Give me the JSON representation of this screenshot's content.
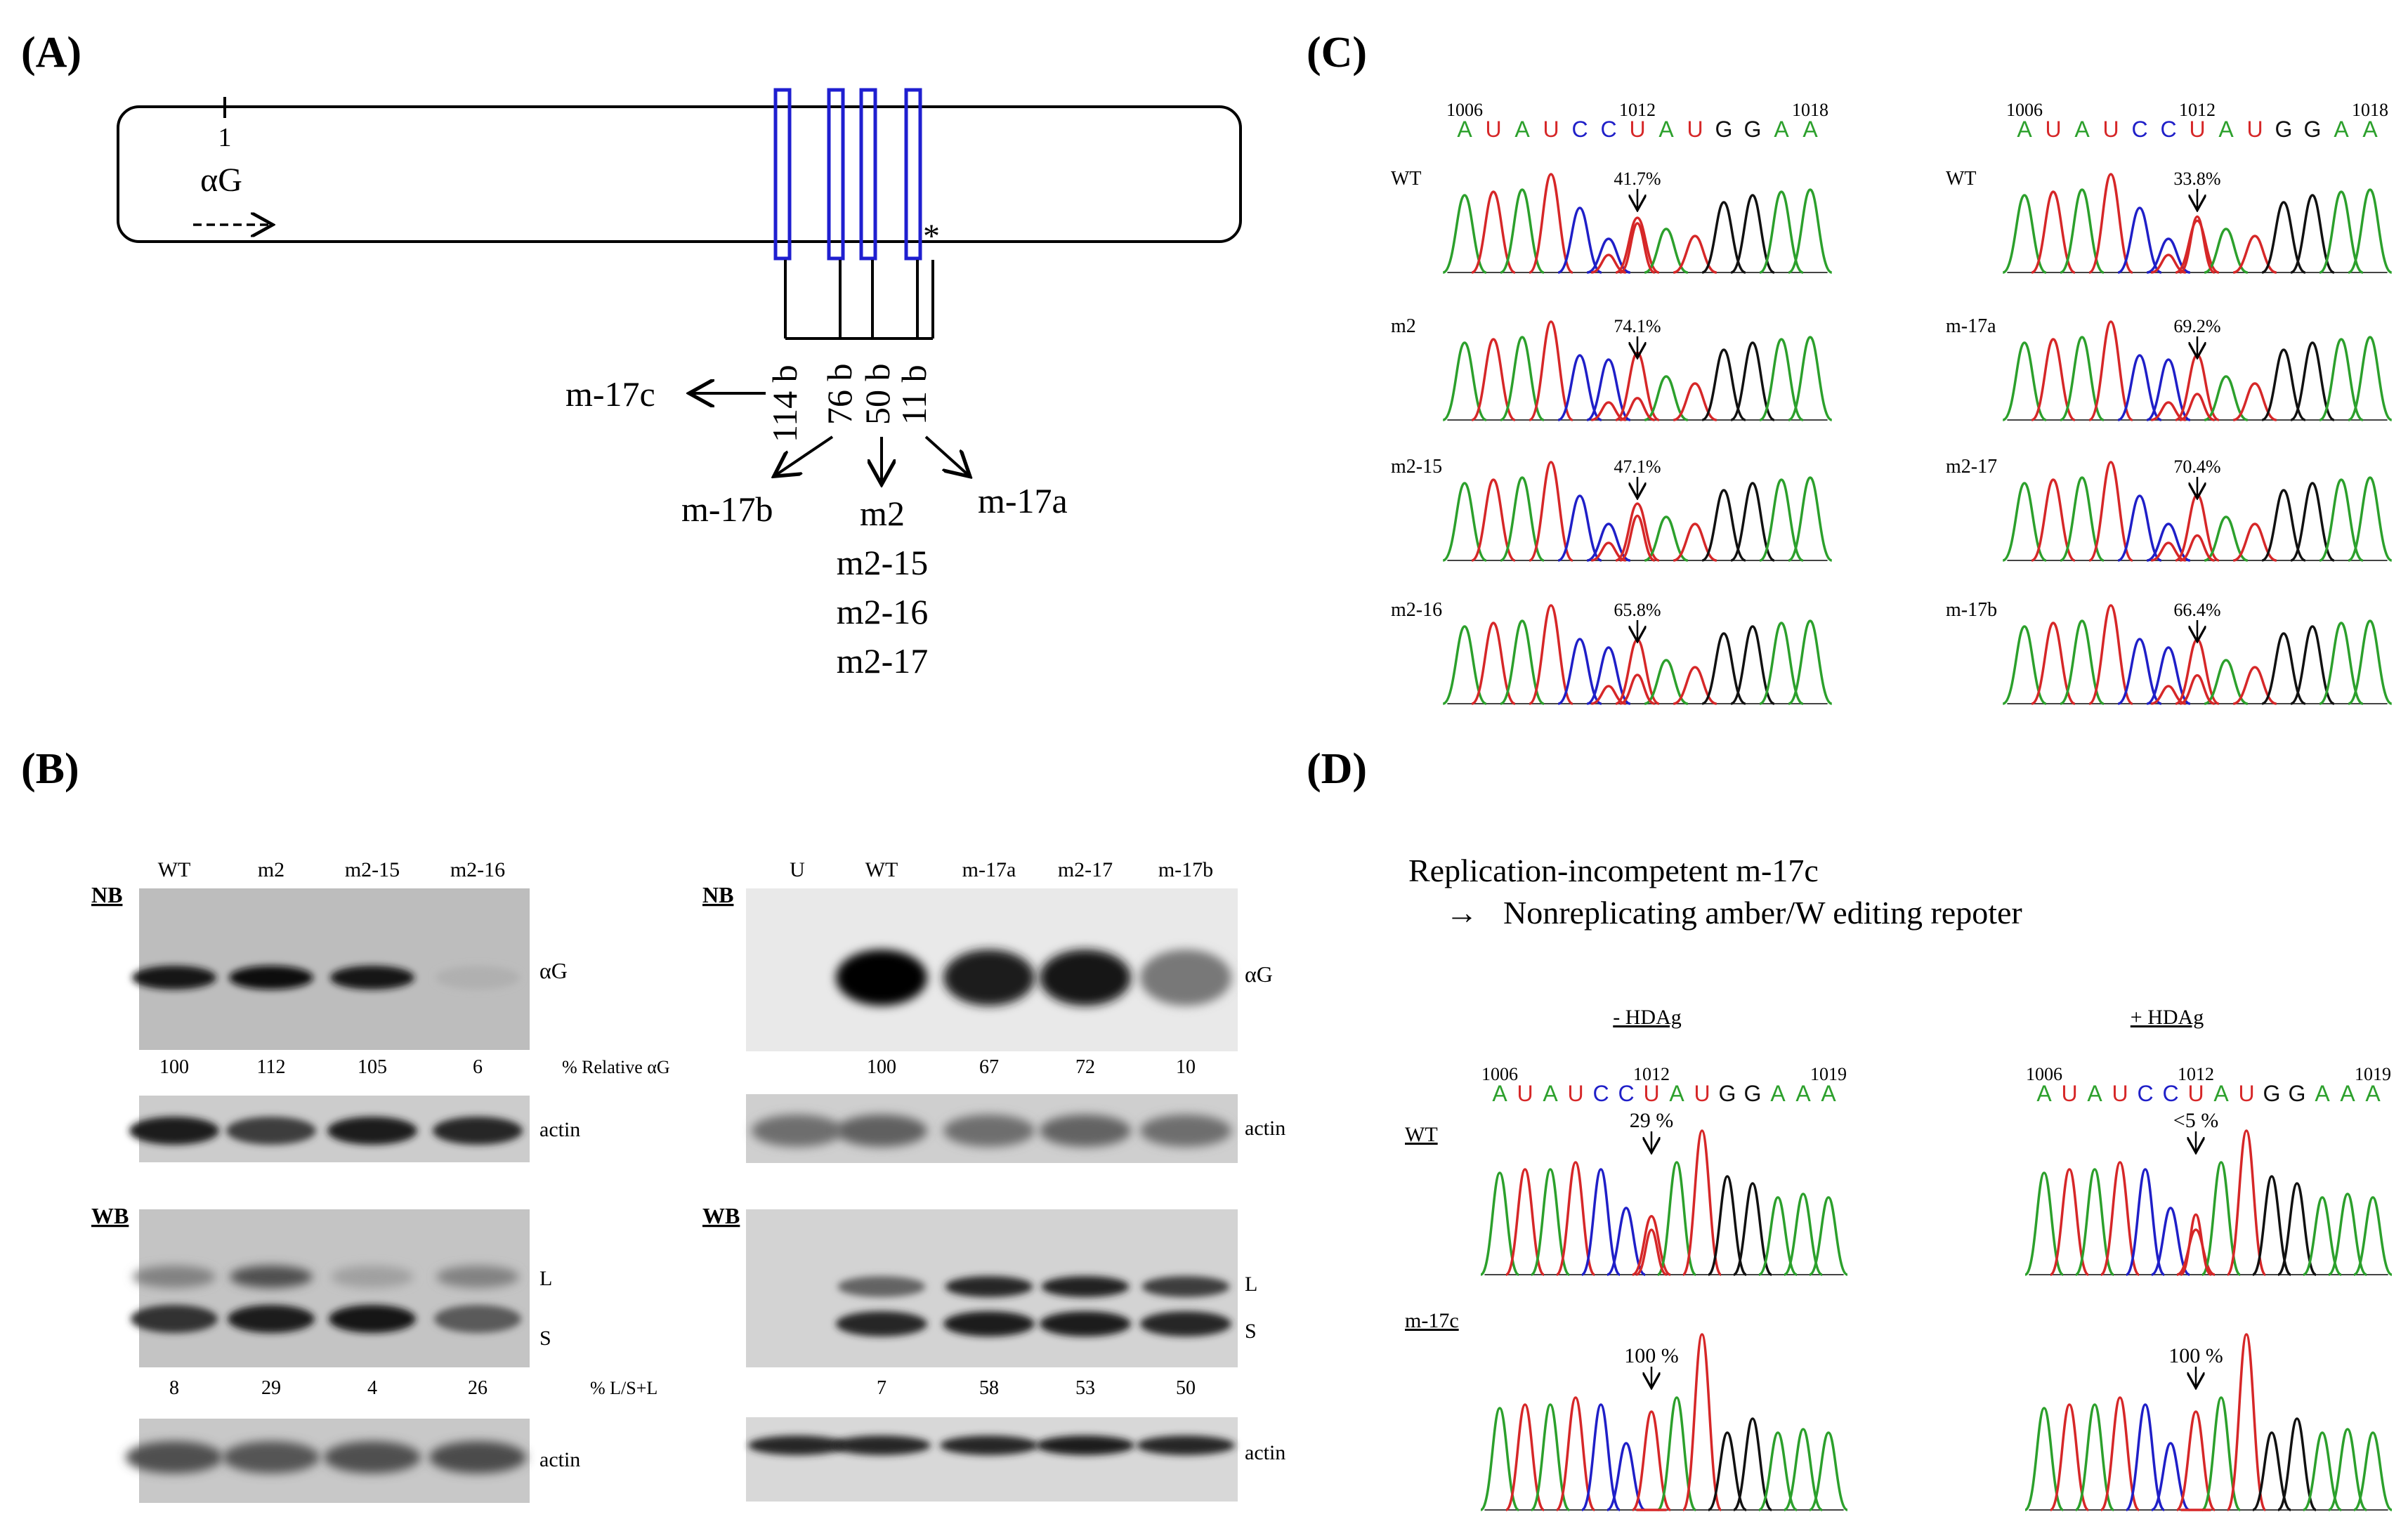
{
  "panels": {
    "A": "(A)",
    "B": "(B)",
    "C": "(C)",
    "D": "(D)"
  },
  "panelA": {
    "pos_label": "1",
    "ag_label": "αG",
    "star": "*",
    "sizes": [
      "114 b",
      "76 b",
      "50 b",
      "11 b"
    ],
    "mutants": {
      "c": "m-17c",
      "b": "m-17b",
      "a": "m-17a",
      "center": [
        "m2",
        "m2-15",
        "m2-16",
        "m2-17"
      ]
    }
  },
  "panelB": {
    "left": {
      "lanes": [
        "WT",
        "m2",
        "m2-15",
        "m2-16"
      ],
      "nb": "NB",
      "wb": "WB",
      "ag_band": "αG",
      "actin": "actin",
      "relative_label": "% Relative αG",
      "relative_values": [
        "100",
        "112",
        "105",
        "6"
      ],
      "ls_label": "% L/S+L",
      "ls_values": [
        "8",
        "29",
        "4",
        "26"
      ],
      "L": "L",
      "S": "S",
      "nb_intensity": [
        0.9,
        0.92,
        0.9,
        0.12
      ],
      "L_intensity": [
        0.35,
        0.6,
        0.2,
        0.35
      ],
      "S_intensity": [
        0.75,
        0.85,
        0.9,
        0.55
      ]
    },
    "right": {
      "lanes": [
        "U",
        "WT",
        "m-17a",
        "m2-17",
        "m-17b"
      ],
      "nb": "NB",
      "wb": "WB",
      "ag_band": "αG",
      "actin": "actin",
      "relative_values": [
        "100",
        "67",
        "72",
        "10"
      ],
      "ls_values": [
        "7",
        "58",
        "53",
        "50"
      ],
      "L": "L",
      "S": "S",
      "nb_intensity": [
        0,
        1.0,
        0.85,
        0.9,
        0.4
      ],
      "L_intensity": [
        0,
        0.5,
        0.8,
        0.82,
        0.7
      ],
      "S_intensity": [
        0,
        0.8,
        0.85,
        0.85,
        0.8
      ]
    }
  },
  "panelC": {
    "numbers": [
      "1006",
      "1012",
      "1018"
    ],
    "sequence": [
      "A",
      "U",
      "A",
      "U",
      "C",
      "C",
      "U",
      "A",
      "U",
      "G",
      "G",
      "A",
      "A"
    ],
    "left": [
      {
        "name": "WT",
        "pct": "41.7%"
      },
      {
        "name": "m2",
        "pct": "74.1%"
      },
      {
        "name": "m2-15",
        "pct": "47.1%"
      },
      {
        "name": "m2-16",
        "pct": "65.8%"
      }
    ],
    "right": [
      {
        "name": "WT",
        "pct": "33.8%"
      },
      {
        "name": "m-17a",
        "pct": "69.2%"
      },
      {
        "name": "m2-17",
        "pct": "70.4%"
      },
      {
        "name": "m-17b",
        "pct": "66.4%"
      }
    ]
  },
  "panelD": {
    "line1": "Replication-incompetent  m-17c",
    "arrow": "→",
    "line2": "Nonreplicating amber/W editing repoter",
    "minus": "- HDAg",
    "plus": "+ HDAg",
    "numbers": [
      "1006",
      "1012",
      "1019"
    ],
    "sequence": [
      "A",
      "U",
      "A",
      "U",
      "C",
      "C",
      "U",
      "A",
      "U",
      "G",
      "G",
      "A",
      "A",
      "A"
    ],
    "rows": [
      "WT",
      "m-17c"
    ],
    "pct": {
      "minus": [
        "29 %",
        "100 %"
      ],
      "plus": [
        "<5 %",
        "100 %"
      ]
    }
  },
  "colors": {
    "A": "#2ca02c",
    "U": "#d62728",
    "C": "#1f1fc8",
    "G": "#111111",
    "box": "#1f1fd0",
    "blot": "#bdbdbd"
  }
}
